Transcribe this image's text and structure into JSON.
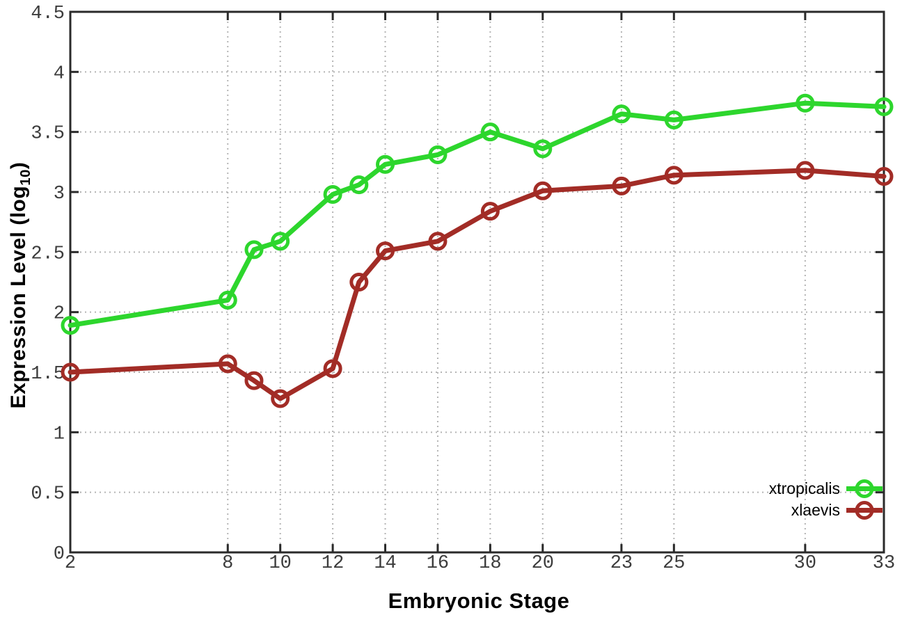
{
  "figure": {
    "background": "#ffffff",
    "xlabel": "Embryonic Stage",
    "ylabel_main": "Expression Level (log",
    "ylabel_sub": "10",
    "ylabel_close": ")"
  },
  "legend": {
    "position": "bottom-right",
    "entries": [
      {
        "label": "xtropicalis",
        "color": "#2dd62d"
      },
      {
        "label": "xlaevis",
        "color": "#a22c26"
      }
    ]
  },
  "chart_data": {
    "type": "line",
    "title": "",
    "xlabel": "Embryonic Stage",
    "ylabel": "Expression Level (log10)",
    "x": [
      2,
      8,
      9,
      10,
      12,
      13,
      14,
      16,
      18,
      20,
      23,
      25,
      30,
      33
    ],
    "series": [
      {
        "name": "xtropicalis",
        "color": "#2dd62d",
        "values": [
          1.89,
          2.1,
          2.52,
          2.59,
          2.98,
          3.06,
          3.23,
          3.31,
          3.5,
          3.36,
          3.65,
          3.6,
          3.74,
          3.71
        ]
      },
      {
        "name": "xlaevis",
        "color": "#a22c26",
        "values": [
          1.5,
          1.57,
          1.43,
          1.28,
          1.53,
          2.25,
          2.51,
          2.59,
          2.84,
          3.01,
          3.05,
          3.14,
          3.18,
          3.13
        ]
      }
    ],
    "x_ticks": [
      2,
      8,
      10,
      12,
      14,
      16,
      18,
      20,
      23,
      25,
      30,
      33
    ],
    "y_ticks": [
      0,
      0.5,
      1,
      1.5,
      2,
      2.5,
      3,
      3.5,
      4,
      4.5
    ],
    "xlim": [
      2,
      33
    ],
    "ylim": [
      0,
      4.5
    ],
    "grid": true,
    "legend_position": "bottom-right",
    "marker": "open-circle",
    "styles": {
      "grid_color": "#b4b4b4",
      "axis_color": "#2a2a2a",
      "tick_label_color": "#3c3c3c",
      "line_width": 7,
      "marker_radius": 11,
      "marker_stroke": 5
    }
  }
}
